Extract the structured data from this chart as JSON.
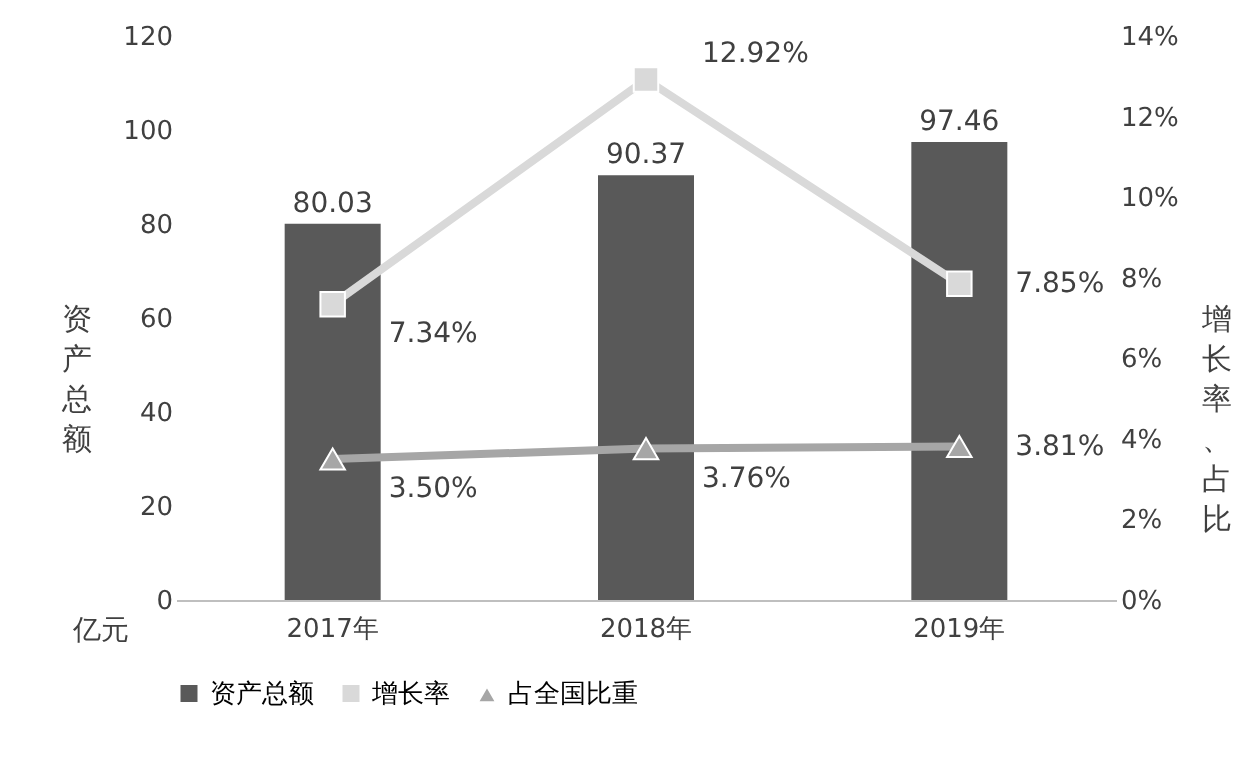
{
  "chart_data": {
    "type": "bar",
    "categories": [
      "2017年",
      "2018年",
      "2019年"
    ],
    "ylabel": "资产总额",
    "y2label": "增长率、占比",
    "ylim": [
      0,
      120
    ],
    "yticks": [
      0,
      20,
      40,
      60,
      80,
      100,
      120
    ],
    "y2lim": [
      0,
      14
    ],
    "y2ticks": [
      {
        "value": 0,
        "label": "0%"
      },
      {
        "value": 2,
        "label": "2%"
      },
      {
        "value": 4,
        "label": "4%"
      },
      {
        "value": 6,
        "label": "6%"
      },
      {
        "value": 8,
        "label": "8%"
      },
      {
        "value": 10,
        "label": "10%"
      },
      {
        "value": 12,
        "label": "12%"
      },
      {
        "value": 14,
        "label": "14%"
      }
    ],
    "annotations": [
      "亿元"
    ],
    "legend": "bottom",
    "grid": false,
    "data_labels": true,
    "series": [
      {
        "name": "资产总额",
        "color": "#595959",
        "values": [
          80.03,
          90.37,
          97.46
        ]
      },
      {
        "name": "增长率",
        "type": "line",
        "axis": "y2",
        "marker": "square",
        "color": "#d9d9d9",
        "values": [
          7.34,
          12.92,
          7.85
        ],
        "value_labels": [
          "7.34%",
          "12.92%",
          "7.85%"
        ]
      },
      {
        "name": "占全国比重",
        "type": "line",
        "axis": "y2",
        "marker": "triangle",
        "color": "#a6a6a6",
        "values": [
          3.5,
          3.76,
          3.81
        ],
        "value_labels": [
          "3.50%",
          "3.76%",
          "3.81%"
        ]
      }
    ]
  }
}
